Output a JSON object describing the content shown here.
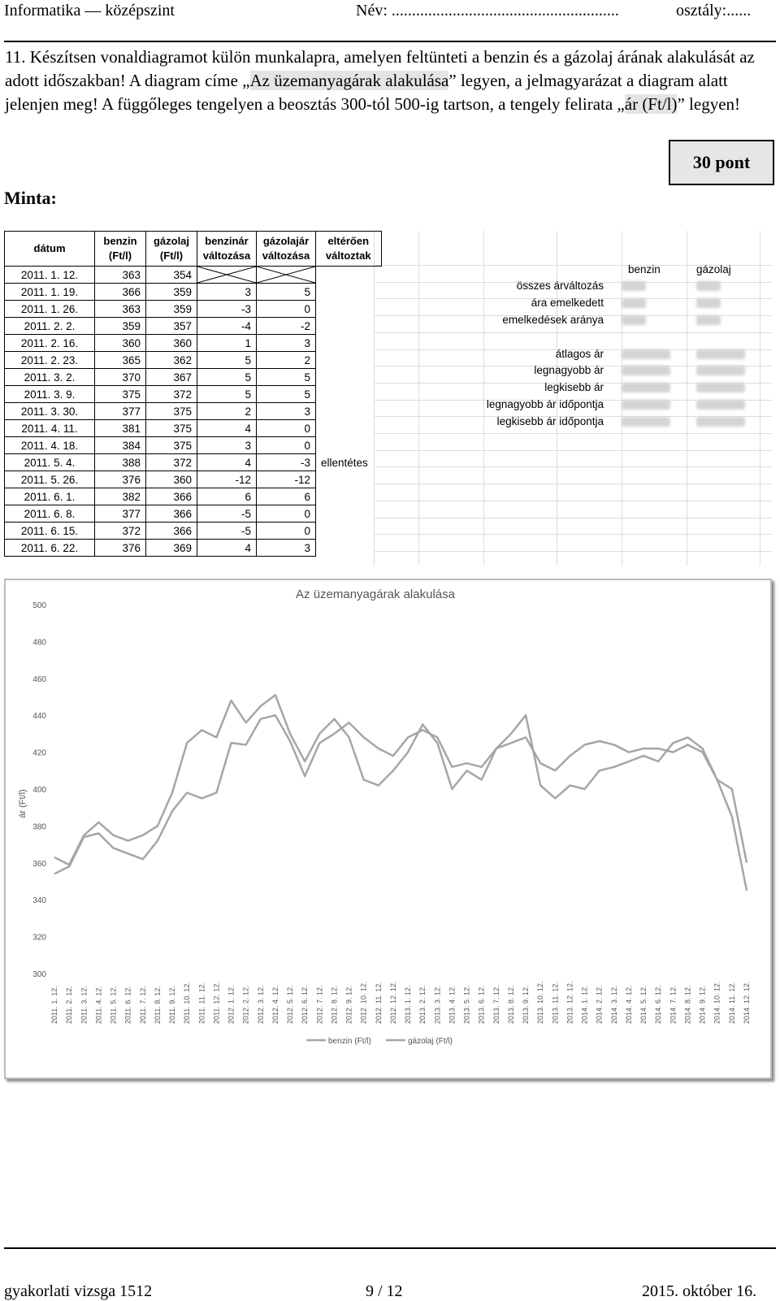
{
  "header": {
    "subject": "Informatika — középszint",
    "name_label": "Név: ........................................................",
    "class_label": "osztály:......"
  },
  "task": {
    "number": "11.",
    "text_1": "Készítsen vonaldiagramot külön munkalapra, amelyen feltünteti a benzin és a gázolaj árának alakulását az adott időszakban! A diagram címe „",
    "title_highlight": "Az üzemanyagárak alakulása",
    "text_2": "” legyen, a jelmagyarázat a diagram alatt jelenjen meg! A függőleges tengelyen a beosztás 300-tól 500-ig tartson, a tengely felirata „",
    "axis_highlight": "ár (Ft/l)",
    "text_3": "” legyen!"
  },
  "points": "30 pont",
  "minta": "Minta:",
  "table": {
    "headers": [
      "dátum",
      "benzin (Ft/l)",
      "gázolaj (Ft/l)",
      "benzinár változása",
      "gázolajár változása",
      "eltérően változtak"
    ],
    "rows": [
      [
        "2011. 1. 12.",
        "363",
        "354",
        "",
        "",
        ""
      ],
      [
        "2011. 1. 19.",
        "366",
        "359",
        "3",
        "5",
        ""
      ],
      [
        "2011. 1. 26.",
        "363",
        "359",
        "-3",
        "0",
        ""
      ],
      [
        "2011. 2. 2.",
        "359",
        "357",
        "-4",
        "-2",
        ""
      ],
      [
        "2011. 2. 16.",
        "360",
        "360",
        "1",
        "3",
        ""
      ],
      [
        "2011. 2. 23.",
        "365",
        "362",
        "5",
        "2",
        ""
      ],
      [
        "2011. 3. 2.",
        "370",
        "367",
        "5",
        "5",
        ""
      ],
      [
        "2011. 3. 9.",
        "375",
        "372",
        "5",
        "5",
        ""
      ],
      [
        "2011. 3. 30.",
        "377",
        "375",
        "2",
        "3",
        ""
      ],
      [
        "2011. 4. 11.",
        "381",
        "375",
        "4",
        "0",
        ""
      ],
      [
        "2011. 4. 18.",
        "384",
        "375",
        "3",
        "0",
        ""
      ],
      [
        "2011. 5. 4.",
        "388",
        "372",
        "4",
        "-3",
        "ellentétes"
      ],
      [
        "2011. 5. 26.",
        "376",
        "360",
        "-12",
        "-12",
        ""
      ],
      [
        "2011. 6. 1.",
        "382",
        "366",
        "6",
        "6",
        ""
      ],
      [
        "2011. 6. 8.",
        "377",
        "366",
        "-5",
        "0",
        ""
      ],
      [
        "2011. 6. 15.",
        "372",
        "366",
        "-5",
        "0",
        ""
      ],
      [
        "2011. 6. 22.",
        "376",
        "369",
        "4",
        "3",
        ""
      ]
    ]
  },
  "stats": {
    "col_benzin": "benzin",
    "col_gazolaj": "gázolaj",
    "labels": [
      "összes árváltozás",
      "ára emelkedett",
      "emelkedések aránya",
      "átlagos ár",
      "legnagyobb ár",
      "legkisebb ár",
      "legnagyobb ár időpontja",
      "legkisebb ár időpontja"
    ]
  },
  "chart_data": {
    "type": "line",
    "title": "Az üzemanyagárak alakulása",
    "xlabel": "",
    "ylabel": "ár (Ft/l)",
    "ylim": [
      300,
      500
    ],
    "yticks": [
      300,
      320,
      340,
      360,
      380,
      400,
      420,
      440,
      460,
      480,
      500
    ],
    "grid": false,
    "legend": "bottom",
    "x_ticks": [
      "2011. 1. 12.",
      "2011. 2. 12.",
      "2011. 3. 12.",
      "2011. 4. 12.",
      "2011. 5. 12.",
      "2011. 6. 12.",
      "2011. 7. 12.",
      "2011. 8. 12.",
      "2011. 9. 12.",
      "2011. 10. 12.",
      "2011. 11. 12.",
      "2011. 12. 12.",
      "2012. 1. 12.",
      "2012. 2. 12.",
      "2012. 3. 12.",
      "2012. 4. 12.",
      "2012. 5. 12.",
      "2012. 6. 12.",
      "2012. 7. 12.",
      "2012. 8. 12.",
      "2012. 9. 12.",
      "2012. 10. 12.",
      "2012. 11. 12.",
      "2012. 12. 12.",
      "2013. 1. 12.",
      "2013. 2. 12.",
      "2013. 3. 12.",
      "2013. 4. 12.",
      "2013. 5. 12.",
      "2013. 6. 12.",
      "2013. 7. 12.",
      "2013. 8. 12.",
      "2013. 9. 12.",
      "2013. 10. 12.",
      "2013. 11. 12.",
      "2013. 12. 12.",
      "2014. 1. 12.",
      "2014. 2. 12.",
      "2014. 3. 12.",
      "2014. 4. 12.",
      "2014. 5. 12.",
      "2014. 6. 12.",
      "2014. 7. 12.",
      "2014. 8. 12.",
      "2014. 9. 12.",
      "2014. 10. 12.",
      "2014. 11. 12.",
      "2014. 12. 12."
    ],
    "series": [
      {
        "name": "benzin (Ft/l)",
        "color": "#a6a6a6",
        "values": [
          363,
          359,
          375,
          382,
          375,
          372,
          375,
          380,
          398,
          425,
          432,
          428,
          448,
          436,
          445,
          451,
          430,
          415,
          430,
          438,
          428,
          405,
          402,
          410,
          420,
          435,
          425,
          400,
          410,
          405,
          422,
          430,
          440,
          402,
          395,
          402,
          400,
          410,
          412,
          415,
          418,
          415,
          425,
          428,
          422,
          405,
          385,
          345
        ]
      },
      {
        "name": "gázolaj (Ft/l)",
        "color": "#a6a6a6",
        "values": [
          354,
          358,
          374,
          376,
          368,
          365,
          362,
          372,
          388,
          398,
          395,
          398,
          425,
          424,
          438,
          440,
          426,
          407,
          425,
          430,
          436,
          428,
          422,
          418,
          428,
          432,
          428,
          412,
          414,
          412,
          422,
          425,
          428,
          414,
          410,
          418,
          424,
          426,
          424,
          420,
          422,
          422,
          420,
          424,
          420,
          405,
          400,
          360
        ]
      }
    ]
  },
  "footer": {
    "left": "gyakorlati vizsga 1512",
    "center": "9 / 12",
    "right": "2015. október 16."
  }
}
